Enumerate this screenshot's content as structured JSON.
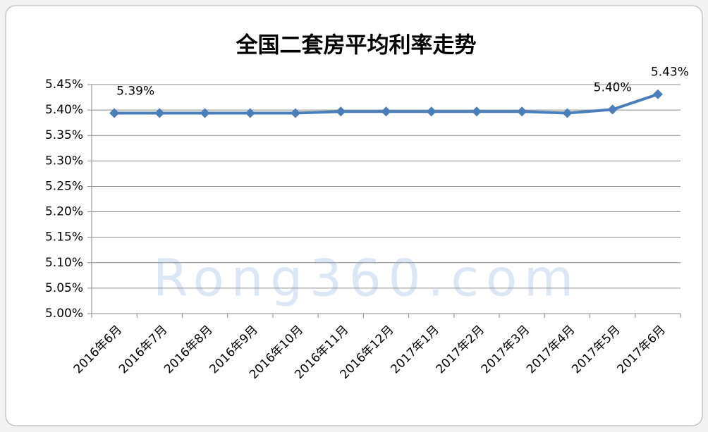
{
  "chart_data": {
    "type": "line",
    "title": "全国二套房平均利率走势",
    "watermark": "Rong360.com",
    "categories": [
      "2016年6月",
      "2016年7月",
      "2016年8月",
      "2016年9月",
      "2016年10月",
      "2016年11月",
      "2016年12月",
      "2017年1月",
      "2017年2月",
      "2017年3月",
      "2017年4月",
      "2017年5月",
      "2017年6月"
    ],
    "series": [
      {
        "name": "全国二套房平均利率",
        "color": "#4a7ebb",
        "values": [
          5.394,
          5.394,
          5.394,
          5.394,
          5.394,
          5.397,
          5.397,
          5.397,
          5.397,
          5.397,
          5.394,
          5.401,
          5.431
        ],
        "value_labels": [
          "5.39%",
          null,
          null,
          null,
          null,
          null,
          null,
          null,
          null,
          null,
          null,
          "5.40%",
          "5.43%"
        ]
      }
    ],
    "ylim": [
      5.0,
      5.45
    ],
    "yticks": [
      {
        "value": 5.0,
        "label": "5.00%"
      },
      {
        "value": 5.05,
        "label": "5.05%"
      },
      {
        "value": 5.1,
        "label": "5.10%"
      },
      {
        "value": 5.15,
        "label": "5.15%"
      },
      {
        "value": 5.2,
        "label": "5.20%"
      },
      {
        "value": 5.25,
        "label": "5.25%"
      },
      {
        "value": 5.3,
        "label": "5.30%"
      },
      {
        "value": 5.35,
        "label": "5.35%"
      },
      {
        "value": 5.4,
        "label": "5.40%"
      },
      {
        "value": 5.45,
        "label": "5.45%"
      }
    ],
    "grid": true
  }
}
